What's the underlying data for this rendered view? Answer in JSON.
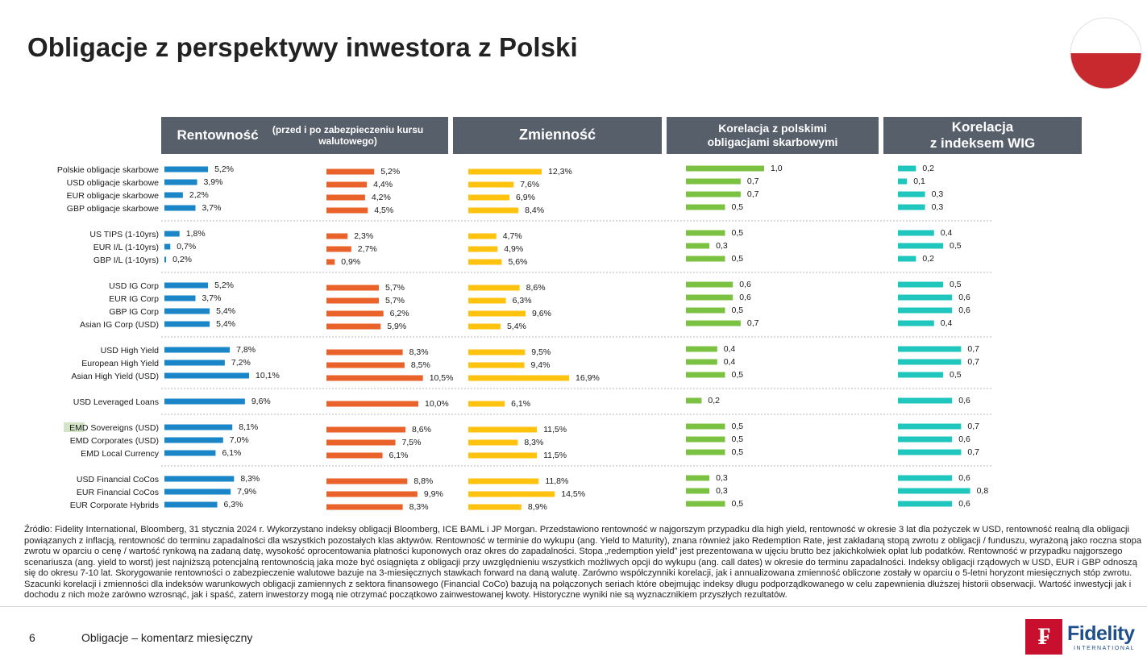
{
  "page": {
    "title": "Obligacje z perspektywy inwestora z Polski",
    "page_number": "6",
    "footer_text": "Obligacje – komentarz miesięczny",
    "logo_name": "Fidelity",
    "logo_sub": "INTERNATIONAL",
    "logo_glyph": "₣"
  },
  "headers": {
    "yield_main": "Rentowność",
    "yield_sub": "(przed i po zabezpieczeniu kursu walutowego)",
    "volatility": "Zmienność",
    "corr_pl_line1": "Korelacja z polskimi",
    "corr_pl_line2": "obligacjami skarbowymi",
    "corr_wig_line1": "Korelacja",
    "corr_wig_line2": "z indeksem WIG"
  },
  "colors": {
    "yield_before": "#1a86c8",
    "yield_after": "#e8622a",
    "volatility": "#ffc20e",
    "corr_pl": "#7cc242",
    "corr_wig": "#1fc6be",
    "header_bg": "#575f6b",
    "flag_top": "#ffffff",
    "flag_bottom": "#c8292e"
  },
  "chart_data": {
    "type": "bar",
    "orientation": "horizontal",
    "categories": [
      "Polskie obligacje skarbowe",
      "USD obligacje skarbowe",
      "EUR obligacje skarbowe",
      "GBP obligacje skarbowe",
      "US TIPS (1-10yrs)",
      "EUR I/L (1-10yrs)",
      "GBP I/L (1-10yrs)",
      "USD IG Corp",
      "EUR IG Corp",
      "GBP IG Corp",
      "Asian IG Corp (USD)",
      "USD High Yield",
      "European High Yield",
      "Asian High Yield (USD)",
      "USD Leveraged Loans",
      "EMD Sovereigns (USD)",
      "EMD Corporates (USD)",
      "EMD Local Currency",
      "USD Financial CoCos",
      "EUR Financial CoCos",
      "EUR Corporate Hybrids"
    ],
    "groups": [
      4,
      3,
      4,
      3,
      1,
      3,
      3
    ],
    "series": [
      {
        "key": "yield_before",
        "values": [
          5.2,
          3.9,
          2.2,
          3.7,
          1.8,
          0.7,
          0.2,
          5.2,
          3.7,
          5.4,
          5.4,
          7.8,
          7.2,
          10.1,
          9.6,
          8.1,
          7.0,
          6.1,
          8.3,
          7.9,
          6.3
        ],
        "labels": [
          "5,2%",
          "3,9%",
          "2,2%",
          "3,7%",
          "1,8%",
          "0,7%",
          "0,2%",
          "5,2%",
          "3,7%",
          "5,4%",
          "5,4%",
          "7,8%",
          "7,2%",
          "10,1%",
          "9,6%",
          "8,1%",
          "7,0%",
          "6,1%",
          "8,3%",
          "7,9%",
          "6,3%"
        ]
      },
      {
        "key": "yield_after",
        "values": [
          5.2,
          4.4,
          4.2,
          4.5,
          2.3,
          2.7,
          0.9,
          5.7,
          5.7,
          6.2,
          5.9,
          8.3,
          8.5,
          10.5,
          10.0,
          8.6,
          7.5,
          6.1,
          8.8,
          9.9,
          8.3
        ],
        "labels": [
          "5,2%",
          "4,4%",
          "4,2%",
          "4,5%",
          "2,3%",
          "2,7%",
          "0,9%",
          "5,7%",
          "5,7%",
          "6,2%",
          "5,9%",
          "8,3%",
          "8,5%",
          "10,5%",
          "10,0%",
          "8,6%",
          "7,5%",
          "6,1%",
          "8,8%",
          "9,9%",
          "8,3%"
        ]
      },
      {
        "key": "volatility",
        "values": [
          12.3,
          7.6,
          6.9,
          8.4,
          4.7,
          4.9,
          5.6,
          8.6,
          6.3,
          9.6,
          5.4,
          9.5,
          9.4,
          16.9,
          6.1,
          11.5,
          8.3,
          11.5,
          11.8,
          14.5,
          8.9
        ],
        "labels": [
          "12,3%",
          "7,6%",
          "6,9%",
          "8,4%",
          "4,7%",
          "4,9%",
          "5,6%",
          "8,6%",
          "6,3%",
          "9,6%",
          "5,4%",
          "9,5%",
          "9,4%",
          "16,9%",
          "6,1%",
          "11,5%",
          "8,3%",
          "11,5%",
          "11,8%",
          "14,5%",
          "8,9%"
        ]
      },
      {
        "key": "corr_pl",
        "values": [
          1.0,
          0.7,
          0.7,
          0.5,
          0.5,
          0.3,
          0.5,
          0.6,
          0.6,
          0.5,
          0.7,
          0.4,
          0.4,
          0.5,
          0.2,
          0.5,
          0.5,
          0.5,
          0.3,
          0.3,
          0.5
        ],
        "labels": [
          "1,0",
          "0,7",
          "0,7",
          "0,5",
          "0,5",
          "0,3",
          "0,5",
          "0,6",
          "0,6",
          "0,5",
          "0,7",
          "0,4",
          "0,4",
          "0,5",
          "0,2",
          "0,5",
          "0,5",
          "0,5",
          "0,3",
          "0,3",
          "0,5"
        ]
      },
      {
        "key": "corr_wig",
        "values": [
          0.2,
          0.1,
          0.3,
          0.3,
          0.4,
          0.5,
          0.2,
          0.5,
          0.6,
          0.6,
          0.4,
          0.7,
          0.7,
          0.5,
          0.6,
          0.7,
          0.6,
          0.7,
          0.6,
          0.8,
          0.6
        ],
        "labels": [
          "0,2",
          "0,1",
          "0,3",
          "0,3",
          "0,4",
          "0,5",
          "0,2",
          "0,5",
          "0,6",
          "0,6",
          "0,4",
          "0,7",
          "0,7",
          "0,5",
          "0,6",
          "0,7",
          "0,6",
          "0,7",
          "0,6",
          "0,8",
          "0,6"
        ]
      }
    ]
  },
  "footnote": "Źródło: Fidelity International, Bloomberg, 31 stycznia 2024 r. Wykorzystano indeksy obligacji Bloomberg, ICE BAML i JP Morgan. Przedstawiono rentowność w najgorszym przypadku dla high yield, rentowność w okresie 3 lat dla pożyczek w USD, rentowność realną dla obligacji powiązanych z inflacją, rentowność do terminu zapadalności dla wszystkich pozostałych klas aktywów. Rentowność w terminie do wykupu (ang. Yield to Maturity), znana również jako Redemption Rate, jest zakładaną stopą zwrotu z obligacji / funduszu, wyrażoną jako roczna stopa zwrotu w oparciu o cenę / wartość rynkową na zadaną datę, wysokość oprocentowania płatności kuponowych oraz okres do zapadalności. Stopa „redemption yield” jest prezentowana w ujęciu brutto bez jakichkolwiek opłat lub podatków. Rentowność w przypadku najgorszego scenariusza (ang. yield to worst) jest najniższą potencjalną rentownością jaka może być osiągnięta z obligacji przy uwzględnieniu wszystkich możliwych opcji do wykupu (ang. call dates) w okresie do terminu zapadalności. Indeksy obligacji rządowych w USD, EUR i GBP odnoszą się do okresu 7-10 lat. Skorygowanie rentowności o zabezpieczenie walutowe bazuje na 3-miesięcznych stawkach forward na daną walutę. Zarówno współczynniki korelacji, jak i annualizowana zmienność obliczone zostały w oparciu o 5-letni horyzont miesięcznych stóp zwrotu. Szacunki korelacji i zmienności dla indeksów warunkowych obligacji zamiennych z sektora finansowego (Financial CoCo) bazują na połączonych seriach które obejmując indeksy długu podporządkowanego w celu zapewnienia dłuższej historii obserwacji. Wartość inwestycji jak i dochodu z nich może zarówno wzrosnąć, jak i spaść, zatem inwestorzy mogą nie otrzymać początkowo zainwestowanej kwoty. Historyczne wyniki nie są wyznacznikiem przyszłych rezultatów."
}
